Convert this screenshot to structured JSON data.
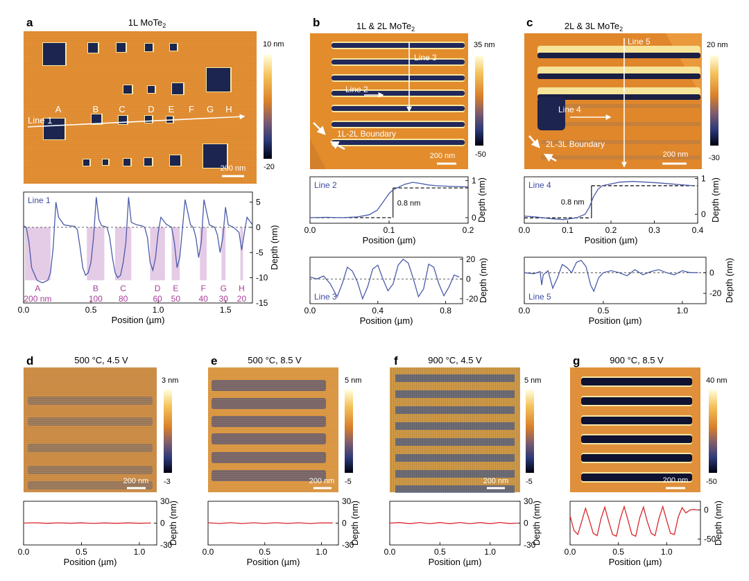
{
  "panels": {
    "a": {
      "letter": "a",
      "title_main": "1L MoTe",
      "title_sub": "2",
      "cbar_max": "10 nm",
      "cbar_min": "-20",
      "scalebar": "200 nm",
      "line_label": "Line 1",
      "hole_letters": [
        "A",
        "B",
        "C",
        "D",
        "E",
        "F",
        "G",
        "H"
      ],
      "hole_sizes": [
        "200 nm",
        "100",
        "80",
        "60",
        "50",
        "40",
        "30",
        "20"
      ],
      "colors": {
        "surface": "#e0892e",
        "hole": "#1b2550",
        "rim": "#f8e9a6"
      }
    },
    "b": {
      "letter": "b",
      "title_main": "1L & 2L MoTe",
      "title_sub": "2",
      "cbar_max": "35 nm",
      "cbar_min": "-50",
      "scalebar": "200 nm",
      "labels": [
        "Line 3",
        "Line 2",
        "1L-2L Boundary"
      ]
    },
    "c": {
      "letter": "c",
      "title_main": "2L & 3L MoTe",
      "title_sub": "2",
      "cbar_max": "20 nm",
      "cbar_min": "-30",
      "scalebar": "200 nm",
      "labels": [
        "Line 5",
        "Line 4",
        "2L-3L Boundary"
      ]
    },
    "d": {
      "letter": "d",
      "title": "500 °C, 4.5 V",
      "cbar_max": "3 nm",
      "cbar_min": "-3",
      "scalebar": "200 nm"
    },
    "e": {
      "letter": "e",
      "title": "500 °C, 8.5 V",
      "cbar_max": "5 nm",
      "cbar_min": "-5",
      "scalebar": "200 nm"
    },
    "f": {
      "letter": "f",
      "title": "900 °C, 4.5 V",
      "cbar_max": "5 nm",
      "cbar_min": "-5",
      "scalebar": "200 nm"
    },
    "g": {
      "letter": "g",
      "title": "900 °C, 8.5 V",
      "cbar_max": "40 nm",
      "cbar_min": "-50",
      "scalebar": "200 nm"
    }
  },
  "chart_data": [
    {
      "id": "line1",
      "type": "line",
      "label": "Line 1",
      "xlabel": "Position (µm)",
      "ylabel": "Depth (nm)",
      "xlim": [
        0,
        1.7
      ],
      "ylim": [
        -15,
        7
      ],
      "xticks": [
        0,
        0.5,
        1,
        1.5
      ],
      "yticks": [
        5,
        0,
        -5,
        -10,
        -15
      ],
      "xtick_labels": [
        "0.0",
        "0.5",
        "1.0",
        "1.5"
      ],
      "ytick_labels": [
        "5",
        "0",
        "-5",
        "-10",
        "-15"
      ],
      "line_color": "#4a5aa8",
      "x": [
        0.0,
        0.02,
        0.04,
        0.06,
        0.1,
        0.14,
        0.18,
        0.2,
        0.22,
        0.24,
        0.26,
        0.3,
        0.34,
        0.38,
        0.4,
        0.42,
        0.44,
        0.46,
        0.48,
        0.5,
        0.52,
        0.54,
        0.56,
        0.58,
        0.6,
        0.62,
        0.64,
        0.66,
        0.68,
        0.7,
        0.72,
        0.74,
        0.76,
        0.78,
        0.8,
        0.84,
        0.88,
        0.9,
        0.92,
        0.94,
        0.96,
        0.98,
        1.0,
        1.02,
        1.06,
        1.08,
        1.1,
        1.12,
        1.14,
        1.16,
        1.2,
        1.24,
        1.26,
        1.28,
        1.3,
        1.32,
        1.34,
        1.38,
        1.42,
        1.44,
        1.46,
        1.48,
        1.5,
        1.52,
        1.56,
        1.6,
        1.62,
        1.64,
        1.66,
        1.7
      ],
      "y": [
        0.3,
        0,
        -3,
        -8,
        -10.5,
        -11,
        -10.5,
        -9,
        -4,
        5,
        2,
        0.5,
        0.3,
        0.2,
        -0.5,
        -4,
        -8,
        -9.5,
        -9,
        -7,
        -2,
        6,
        1.5,
        0.3,
        0.2,
        0,
        -2,
        -6,
        -9,
        -10,
        -9.5,
        -7,
        -3,
        6,
        1,
        0.5,
        0.3,
        0,
        -2,
        -7,
        -8.5,
        -6,
        -1,
        2,
        0.6,
        0.3,
        0,
        -3,
        -8,
        -6,
        5.5,
        0.5,
        0,
        -2,
        -6,
        -3,
        5.5,
        0.5,
        0,
        -1.5,
        -5,
        -2,
        4,
        0.5,
        0,
        -1,
        -4.5,
        -1,
        2,
        0.5
      ],
      "annotation": "shaded regions mark hole positions A–H",
      "shaded_regions": [
        [
          0.01,
          0.2
        ],
        [
          0.47,
          0.6
        ],
        [
          0.68,
          0.8
        ],
        [
          0.94,
          1.05
        ],
        [
          1.1,
          1.16
        ],
        [
          1.31,
          1.36
        ],
        [
          1.47,
          1.5
        ],
        [
          1.61,
          1.63
        ]
      ]
    },
    {
      "id": "line2",
      "type": "line",
      "label": "Line 2",
      "xlabel": "Position (µm)",
      "ylabel": "Depth (nm)",
      "xlim": [
        0,
        0.2
      ],
      "ylim": [
        -0.15,
        1.1
      ],
      "xticks": [
        0,
        0.1,
        0.2
      ],
      "yticks": [
        1,
        0
      ],
      "xtick_labels": [
        "0.0",
        "0.1",
        "0.2"
      ],
      "ytick_labels": [
        "1",
        "0"
      ],
      "step_label": "0.8 nm",
      "dashed_low": 0.0,
      "dashed_high": 0.8,
      "step_x": 0.105,
      "line_color": "#4a5aa8",
      "x": [
        0.0,
        0.02,
        0.04,
        0.06,
        0.075,
        0.085,
        0.09,
        0.095,
        0.1,
        0.105,
        0.11,
        0.12,
        0.13,
        0.14,
        0.15,
        0.16,
        0.18,
        0.2
      ],
      "y": [
        0.0,
        0.01,
        0.0,
        0.02,
        0.08,
        0.2,
        0.35,
        0.5,
        0.65,
        0.75,
        0.8,
        0.9,
        0.95,
        0.92,
        0.88,
        0.86,
        0.84,
        0.83
      ]
    },
    {
      "id": "line3",
      "type": "line",
      "label": "Line 3",
      "xlabel": "Position (µm)",
      "ylabel": "Depth (nm)",
      "xlim": [
        0,
        0.9
      ],
      "ylim": [
        -25,
        22
      ],
      "xticks": [
        0,
        0.4,
        0.8
      ],
      "yticks": [
        20,
        0,
        -20
      ],
      "xtick_labels": [
        "0.0",
        "0.4",
        "0.8"
      ],
      "ytick_labels": [
        "20",
        "0",
        "-20"
      ],
      "line_color": "#4a5aa8",
      "x": [
        0.0,
        0.04,
        0.08,
        0.12,
        0.16,
        0.19,
        0.22,
        0.25,
        0.28,
        0.31,
        0.34,
        0.37,
        0.4,
        0.43,
        0.46,
        0.49,
        0.52,
        0.55,
        0.58,
        0.61,
        0.64,
        0.67,
        0.7,
        0.73,
        0.76,
        0.79,
        0.82,
        0.85,
        0.88
      ],
      "y": [
        2,
        0,
        3,
        -5,
        -18,
        -5,
        12,
        8,
        -3,
        -20,
        -8,
        10,
        14,
        0,
        -12,
        -5,
        14,
        20,
        16,
        0,
        -18,
        -10,
        15,
        12,
        -5,
        -17,
        -8,
        4,
        2
      ]
    },
    {
      "id": "line4",
      "type": "line",
      "label": "Line 4",
      "xlabel": "Position (µm)",
      "ylabel": "Depth (nm)",
      "xlim": [
        0,
        0.4
      ],
      "ylim": [
        -0.25,
        1.05
      ],
      "xticks": [
        0,
        0.1,
        0.2,
        0.3,
        0.4
      ],
      "yticks": [
        1,
        0
      ],
      "xtick_labels": [
        "0.0",
        "0.1",
        "0.2",
        "0.3",
        "0.4"
      ],
      "ytick_labels": [
        "1",
        "0"
      ],
      "step_label": "0.8 nm",
      "dashed_low": -0.1,
      "dashed_high": 0.8,
      "step_x": 0.155,
      "line_color": "#4a5aa8",
      "x": [
        0.0,
        0.03,
        0.06,
        0.09,
        0.12,
        0.14,
        0.15,
        0.16,
        0.17,
        0.18,
        0.2,
        0.22,
        0.25,
        0.28,
        0.31,
        0.34,
        0.37,
        0.39
      ],
      "y": [
        -0.05,
        -0.08,
        -0.12,
        -0.15,
        -0.1,
        0.0,
        0.2,
        0.5,
        0.7,
        0.8,
        0.85,
        0.9,
        0.92,
        0.9,
        0.88,
        0.85,
        0.82,
        0.8
      ]
    },
    {
      "id": "line5",
      "type": "line",
      "label": "Line 5",
      "xlabel": "Position (µm)",
      "ylabel": "Depth (nm)",
      "xlim": [
        0,
        1.15
      ],
      "ylim": [
        -30,
        15
      ],
      "xticks": [
        0,
        0.5,
        1
      ],
      "yticks": [
        0,
        -20
      ],
      "xtick_labels": [
        "0.0",
        "0.5",
        "1.0"
      ],
      "ytick_labels": [
        "0",
        "-20"
      ],
      "line_color": "#4a5aa8",
      "x": [
        0.0,
        0.06,
        0.1,
        0.11,
        0.12,
        0.15,
        0.18,
        0.21,
        0.24,
        0.27,
        0.3,
        0.33,
        0.36,
        0.39,
        0.42,
        0.44,
        0.47,
        0.5,
        0.55,
        0.6,
        0.65,
        0.7,
        0.75,
        0.8,
        0.85,
        0.9,
        0.95,
        1.0,
        1.05,
        1.1
      ],
      "y": [
        0,
        -1,
        1,
        -12,
        -2,
        2,
        -15,
        -5,
        8,
        5,
        0,
        10,
        12,
        6,
        -12,
        -18,
        -5,
        0,
        2,
        0,
        -3,
        3,
        -2,
        1,
        3,
        0,
        -2,
        2,
        0,
        0
      ]
    },
    {
      "id": "line_d",
      "type": "line",
      "xlabel": "Position (µm)",
      "ylabel": "Depth (nm)",
      "xlim": [
        0,
        1.15
      ],
      "ylim": [
        -30,
        30
      ],
      "xticks": [
        0,
        0.5,
        1
      ],
      "yticks": [
        30,
        0,
        -30
      ],
      "xtick_labels": [
        "0.0",
        "0.5",
        "1.0"
      ],
      "ytick_labels": [
        "30",
        "0",
        "-30"
      ],
      "line_color": "#d9262b",
      "x": [
        0.0,
        0.1,
        0.2,
        0.3,
        0.4,
        0.5,
        0.6,
        0.7,
        0.8,
        0.9,
        1.0,
        1.1
      ],
      "y": [
        0,
        0.5,
        -0.3,
        0.4,
        -0.2,
        0.3,
        -0.4,
        0.2,
        -0.3,
        0.3,
        -0.2,
        0.1
      ]
    },
    {
      "id": "line_e",
      "type": "line",
      "xlabel": "Position (µm)",
      "ylabel": "Depth (nm)",
      "xlim": [
        0,
        1.15
      ],
      "ylim": [
        -30,
        30
      ],
      "xticks": [
        0,
        0.5,
        1
      ],
      "yticks": [
        30,
        0,
        -30
      ],
      "xtick_labels": [
        "0.0",
        "0.5",
        "1.0"
      ],
      "ytick_labels": [
        "30",
        "0",
        "-30"
      ],
      "line_color": "#d9262b",
      "x": [
        0.0,
        0.1,
        0.2,
        0.3,
        0.4,
        0.5,
        0.6,
        0.7,
        0.8,
        0.9,
        1.0,
        1.1
      ],
      "y": [
        0.5,
        -0.5,
        0.6,
        -0.6,
        0.5,
        -0.5,
        0.6,
        -0.5,
        0.5,
        -0.6,
        0.4,
        0.2
      ]
    },
    {
      "id": "line_f",
      "type": "line",
      "xlabel": "Position (µm)",
      "ylabel": "Depth (nm)",
      "xlim": [
        0,
        1.3
      ],
      "ylim": [
        -30,
        30
      ],
      "xticks": [
        0,
        0.5,
        1
      ],
      "yticks": [
        30,
        0,
        -30
      ],
      "xtick_labels": [
        "0.0",
        "0.5",
        "1.0"
      ],
      "ytick_labels": [
        "30",
        "0",
        "-30"
      ],
      "line_color": "#d9262b",
      "x": [
        0.0,
        0.1,
        0.2,
        0.3,
        0.4,
        0.5,
        0.6,
        0.7,
        0.8,
        0.9,
        1.0,
        1.1,
        1.2,
        1.27
      ],
      "y": [
        0,
        0.8,
        -0.8,
        0.9,
        -0.9,
        0.8,
        -0.8,
        0.9,
        -0.9,
        0.8,
        -0.8,
        0.9,
        -0.7,
        0
      ]
    },
    {
      "id": "line_g",
      "type": "line",
      "xlabel": "Position (µm)",
      "ylabel": "Depth (nm)",
      "xlim": [
        0,
        1.35
      ],
      "ylim": [
        -60,
        15
      ],
      "xticks": [
        0,
        0.5,
        1
      ],
      "yticks": [
        0,
        -50
      ],
      "xtick_labels": [
        "0.0",
        "0.5",
        "1.0"
      ],
      "ytick_labels": [
        "0",
        "-50"
      ],
      "line_color": "#d9262b",
      "x": [
        0.0,
        0.04,
        0.08,
        0.12,
        0.16,
        0.2,
        0.24,
        0.28,
        0.32,
        0.36,
        0.4,
        0.44,
        0.48,
        0.52,
        0.56,
        0.6,
        0.64,
        0.68,
        0.72,
        0.76,
        0.8,
        0.84,
        0.88,
        0.92,
        0.96,
        1.0,
        1.04,
        1.08,
        1.12,
        1.16,
        1.2,
        1.24,
        1.28,
        1.32
      ],
      "y": [
        -10,
        -35,
        -42,
        -20,
        3,
        -18,
        -40,
        -44,
        -15,
        5,
        -20,
        -42,
        -45,
        -15,
        6,
        -18,
        -42,
        -45,
        -14,
        5,
        -20,
        -40,
        -44,
        -15,
        6,
        -18,
        -40,
        -42,
        -12,
        4,
        -5,
        0,
        1,
        0
      ]
    }
  ]
}
